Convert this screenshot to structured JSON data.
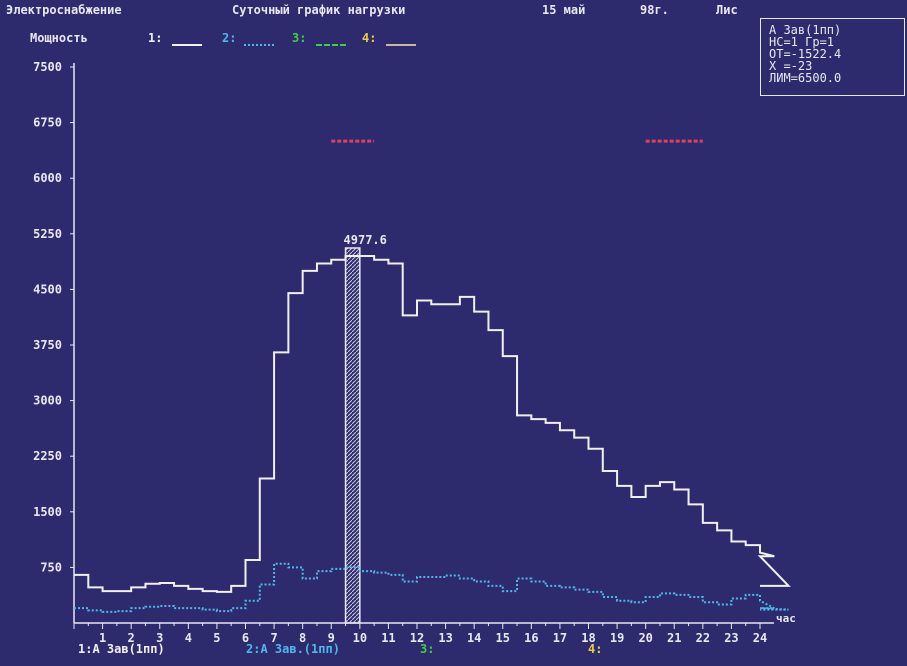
{
  "header": {
    "title": "Электроснабжение",
    "subtitle": "Суточный график нагрузки",
    "date": "15 май",
    "year": "98г.",
    "sheet_label": "Лис"
  },
  "top_legend": {
    "label": "Мощность",
    "items": [
      {
        "key": "1:",
        "color": "#f0f0f0"
      },
      {
        "key": "2:",
        "color": "#4fb8e8"
      },
      {
        "key": "3:",
        "color": "#3fd040"
      },
      {
        "key": "4:",
        "color": "#e8d040"
      }
    ]
  },
  "info_box": {
    "line1": "А Зав(1пп)",
    "line2": "НС=1 Гр=1",
    "line3": "ОТ=-1522.4",
    "line4": "Х =-23",
    "line5": "ЛИМ=6500.0"
  },
  "bottom_legend": {
    "s1": "1:А Зав(1пп)",
    "s2": "2:А Зав.(1пп)",
    "s3": "3:",
    "s4": "4:"
  },
  "chart_data": {
    "type": "line",
    "step": true,
    "xlabel": "час",
    "ylim": [
      0,
      7500
    ],
    "y_ticks": [
      750,
      1500,
      2250,
      3000,
      3750,
      4500,
      5250,
      6000,
      6750,
      7500
    ],
    "x_ticks": [
      1,
      2,
      3,
      4,
      5,
      6,
      7,
      8,
      9,
      10,
      11,
      12,
      13,
      14,
      15,
      16,
      17,
      18,
      19,
      20,
      21,
      22,
      23,
      24
    ],
    "limit": {
      "value": 6500,
      "color": "#e04060",
      "ranges": [
        [
          9.0,
          10.5
        ],
        [
          20.0,
          22.0
        ]
      ]
    },
    "cursor": {
      "hour": 9.5,
      "value": 4977.6,
      "label": "4977.6"
    },
    "series": [
      {
        "name": "1:А Зав(1пп)",
        "color": "#f0f0f0",
        "style": "solid",
        "values": [
          650,
          480,
          430,
          430,
          480,
          530,
          540,
          500,
          460,
          430,
          420,
          500,
          850,
          1950,
          3650,
          4450,
          4750,
          4850,
          4900,
          4950,
          4950,
          4900,
          4850,
          4150,
          4350,
          4300,
          4300,
          4400,
          4200,
          3950,
          3600,
          2800,
          2750,
          2700,
          2600,
          2500,
          2350,
          2050,
          1850,
          1700,
          1850,
          1900,
          1800,
          1600,
          1350,
          1250,
          1100,
          1050,
          950,
          900,
          500
        ]
      },
      {
        "name": "2:А Зав.(1пп)",
        "color": "#4fb8e8",
        "style": "dotted",
        "values": [
          200,
          170,
          150,
          160,
          200,
          220,
          230,
          200,
          200,
          180,
          160,
          200,
          300,
          520,
          800,
          750,
          600,
          700,
          730,
          750,
          700,
          680,
          650,
          560,
          620,
          620,
          640,
          600,
          560,
          500,
          430,
          600,
          560,
          500,
          480,
          450,
          420,
          350,
          300,
          280,
          350,
          400,
          380,
          350,
          280,
          250,
          330,
          380,
          300,
          200,
          180
        ]
      }
    ]
  }
}
